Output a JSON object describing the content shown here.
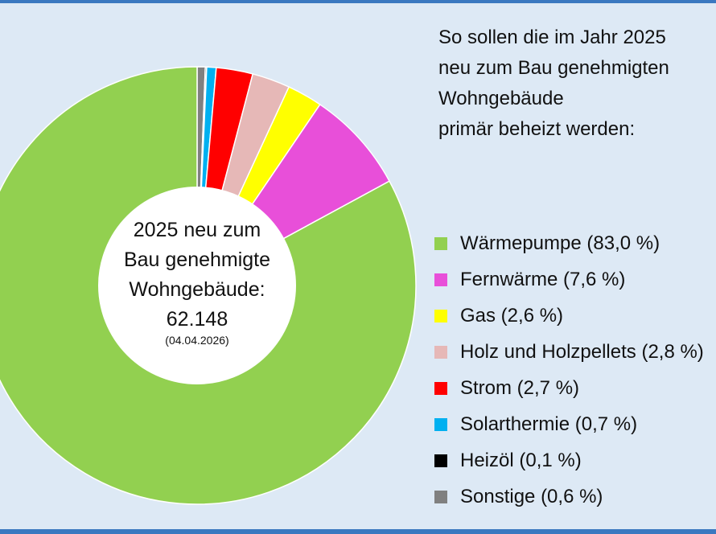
{
  "title_lines": [
    "So sollen die im Jahr 2025",
    "neu zum Bau genehmigten",
    "Wohngebäude",
    "primär beheizt werden:"
  ],
  "center": {
    "lines": [
      "2025 neu zum",
      "Bau genehmigte",
      "Wohngebäude:",
      "62.148"
    ],
    "date": "(04.04.2026)"
  },
  "chart_data": {
    "type": "pie",
    "title": "So sollen die im Jahr 2025 neu zum Bau genehmigten Wohngebäude primär beheizt werden:",
    "total": 62148,
    "slices": [
      {
        "label": "Wärmepumpe (83,0 %)",
        "value": 83.0,
        "color": "#92d050"
      },
      {
        "label": "Fernwärme (7,6 %)",
        "value": 7.6,
        "color": "#e84fd9"
      },
      {
        "label": "Gas (2,6 %)",
        "value": 2.6,
        "color": "#ffff00"
      },
      {
        "label": "Holz und Holzpellets (2,8 %)",
        "value": 2.8,
        "color": "#e6b8b7"
      },
      {
        "label": "Strom  (2,7 %)",
        "value": 2.7,
        "color": "#ff0000"
      },
      {
        "label": "Solarthermie (0,7 %)",
        "value": 0.7,
        "color": "#00b0f0"
      },
      {
        "label": "Heizöl (0,1 %)",
        "value": 0.1,
        "color": "#000000"
      },
      {
        "label": "Sonstige (0,6 %)",
        "value": 0.6,
        "color": "#808080"
      }
    ],
    "legend_position": "right"
  }
}
